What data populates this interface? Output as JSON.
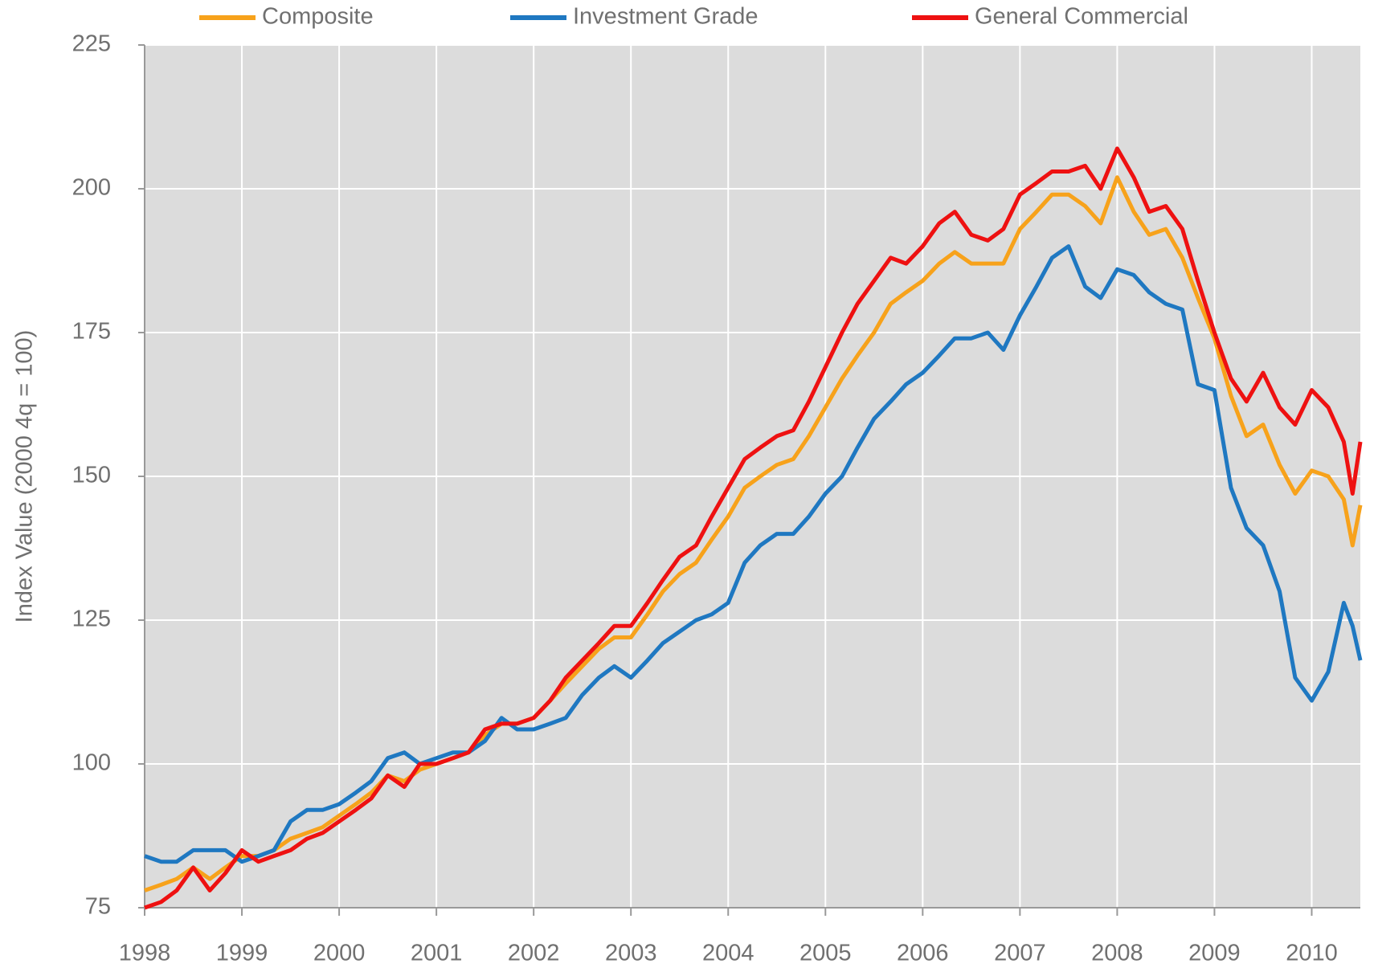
{
  "chart_data": {
    "type": "line",
    "y_label": "Index Value (2000 4q = 100)",
    "x": [
      1998,
      1998.17,
      1998.33,
      1998.5,
      1998.67,
      1998.83,
      1999,
      1999.17,
      1999.33,
      1999.5,
      1999.67,
      1999.83,
      2000,
      2000.17,
      2000.33,
      2000.5,
      2000.67,
      2000.83,
      2001,
      2001.17,
      2001.33,
      2001.5,
      2001.67,
      2001.83,
      2002,
      2002.17,
      2002.33,
      2002.5,
      2002.67,
      2002.83,
      2003,
      2003.17,
      2003.33,
      2003.5,
      2003.67,
      2003.83,
      2004,
      2004.17,
      2004.33,
      2004.5,
      2004.67,
      2004.83,
      2005,
      2005.17,
      2005.33,
      2005.5,
      2005.67,
      2005.83,
      2006,
      2006.17,
      2006.33,
      2006.5,
      2006.67,
      2006.83,
      2007,
      2007.17,
      2007.33,
      2007.5,
      2007.67,
      2007.83,
      2008,
      2008.17,
      2008.33,
      2008.5,
      2008.67,
      2008.83,
      2009,
      2009.17,
      2009.33,
      2009.5,
      2009.67,
      2009.83,
      2010,
      2010.17,
      2010.33,
      2010.42,
      2010.5
    ],
    "series": [
      {
        "name": "Composite",
        "color": "#f7a21b",
        "values": [
          78,
          79,
          80,
          82,
          80,
          82,
          84,
          84,
          85,
          87,
          88,
          89,
          91,
          93,
          95,
          98,
          97,
          99,
          100,
          101,
          102,
          105,
          107,
          107,
          108,
          111,
          114,
          117,
          120,
          122,
          122,
          126,
          130,
          133,
          135,
          139,
          143,
          148,
          150,
          152,
          153,
          157,
          162,
          167,
          171,
          175,
          180,
          182,
          184,
          187,
          189,
          187,
          187,
          187,
          193,
          196,
          199,
          199,
          197,
          194,
          202,
          196,
          192,
          193,
          188,
          181,
          174,
          164,
          157,
          159,
          152,
          147,
          151,
          150,
          146,
          138,
          145
        ]
      },
      {
        "name": "Investment Grade",
        "color": "#1f78c1",
        "values": [
          84,
          83,
          83,
          85,
          85,
          85,
          83,
          84,
          85,
          90,
          92,
          92,
          93,
          95,
          97,
          101,
          102,
          100,
          101,
          102,
          102,
          104,
          108,
          106,
          106,
          107,
          108,
          112,
          115,
          117,
          115,
          118,
          121,
          123,
          125,
          126,
          128,
          135,
          138,
          140,
          140,
          143,
          147,
          150,
          155,
          160,
          163,
          166,
          168,
          171,
          174,
          174,
          175,
          172,
          178,
          183,
          188,
          190,
          183,
          181,
          186,
          185,
          182,
          180,
          179,
          166,
          165,
          148,
          141,
          138,
          130,
          115,
          111,
          116,
          128,
          124,
          118
        ]
      },
      {
        "name": "General Commercial",
        "color": "#ee1111",
        "values": [
          75,
          76,
          78,
          82,
          78,
          81,
          85,
          83,
          84,
          85,
          87,
          88,
          90,
          92,
          94,
          98,
          96,
          100,
          100,
          101,
          102,
          106,
          107,
          107,
          108,
          111,
          115,
          118,
          121,
          124,
          124,
          128,
          132,
          136,
          138,
          143,
          148,
          153,
          155,
          157,
          158,
          163,
          169,
          175,
          180,
          184,
          188,
          187,
          190,
          194,
          196,
          192,
          191,
          193,
          199,
          201,
          203,
          203,
          204,
          200,
          207,
          202,
          196,
          197,
          193,
          184,
          175,
          167,
          163,
          168,
          162,
          159,
          165,
          162,
          156,
          147,
          156
        ]
      }
    ],
    "xlim": [
      1998,
      2010.5
    ],
    "xticks": [
      1998,
      1999,
      2000,
      2001,
      2002,
      2003,
      2004,
      2005,
      2006,
      2007,
      2008,
      2009,
      2010
    ],
    "ylim": [
      75,
      225
    ],
    "yticks": [
      75,
      100,
      125,
      150,
      175,
      200,
      225
    ],
    "grid": true,
    "legend": "top"
  }
}
